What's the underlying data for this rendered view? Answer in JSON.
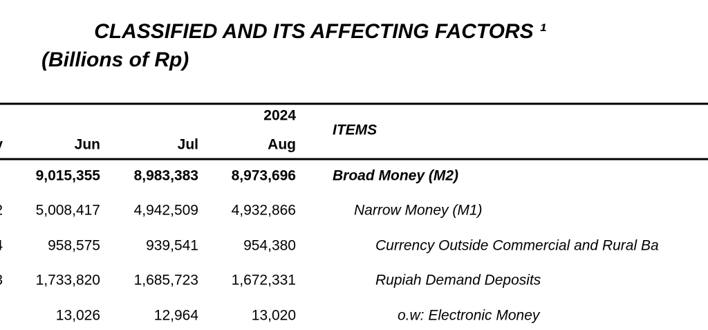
{
  "header": {
    "title": "CLASSIFIED AND ITS AFFECTING FACTORS ¹",
    "subtitle": "(Billions of Rp)"
  },
  "table": {
    "year": "2024",
    "columns": {
      "cut": "y",
      "names": [
        "Jun",
        "Jul",
        "Aug"
      ]
    },
    "items_header": "ITEMS",
    "rows": [
      {
        "values": [
          "9,015,355",
          "8,983,383",
          "8,973,696"
        ],
        "item": "Broad Money (M2)"
      },
      {
        "cut": "2",
        "values": [
          "5,008,417",
          "4,942,509",
          "4,932,866"
        ],
        "item": "Narrow Money (M1)"
      },
      {
        "cut": "4",
        "values": [
          "958,575",
          "939,541",
          "954,380"
        ],
        "item": "Currency Outside Commercial and Rural Ba"
      },
      {
        "cut": "3",
        "values": [
          "1,733,820",
          "1,685,723",
          "1,672,331"
        ],
        "item": "Rupiah Demand Deposits"
      },
      {
        "values": [
          "13,026",
          "12,964",
          "13,020"
        ],
        "item": "o.w: Electronic Money"
      }
    ]
  }
}
